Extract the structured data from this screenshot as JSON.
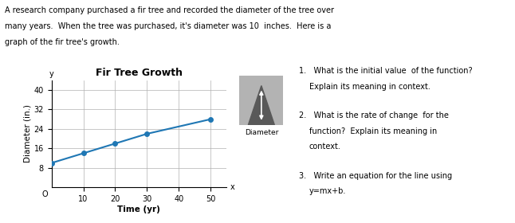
{
  "chart_data": {
    "type": "line",
    "title": "Fir Tree Growth",
    "x_label": "Time (yr)",
    "y_label": "Diameter (in.)",
    "x": [
      0,
      10,
      20,
      30,
      50
    ],
    "values": [
      10,
      14,
      18,
      22,
      28
    ],
    "xlim": [
      0,
      55
    ],
    "ylim": [
      0,
      44
    ],
    "xticks": [
      10,
      20,
      30,
      40,
      50
    ],
    "yticks": [
      8,
      16,
      24,
      32,
      40
    ],
    "grid": true,
    "marker": "o",
    "axis_names": {
      "x": "x",
      "y": "y",
      "origin": "O"
    },
    "header": [
      "A research company purchased a fir tree and recorded the diameter of the tree over",
      "many years.  When the tree was purchased, it's diameter was 10  inches.  Here is a",
      "graph of the fir tree's growth."
    ],
    "image_label": "Diameter",
    "questions": [
      [
        "1.   What is the initial value  of the function?",
        "Explain its meaning in context."
      ],
      [
        "2.   What is the rate of change  for the",
        "function?  Explain its meaning in",
        "context."
      ],
      [
        "3.   Write an equation for the line using",
        "y=mx+b."
      ]
    ]
  }
}
